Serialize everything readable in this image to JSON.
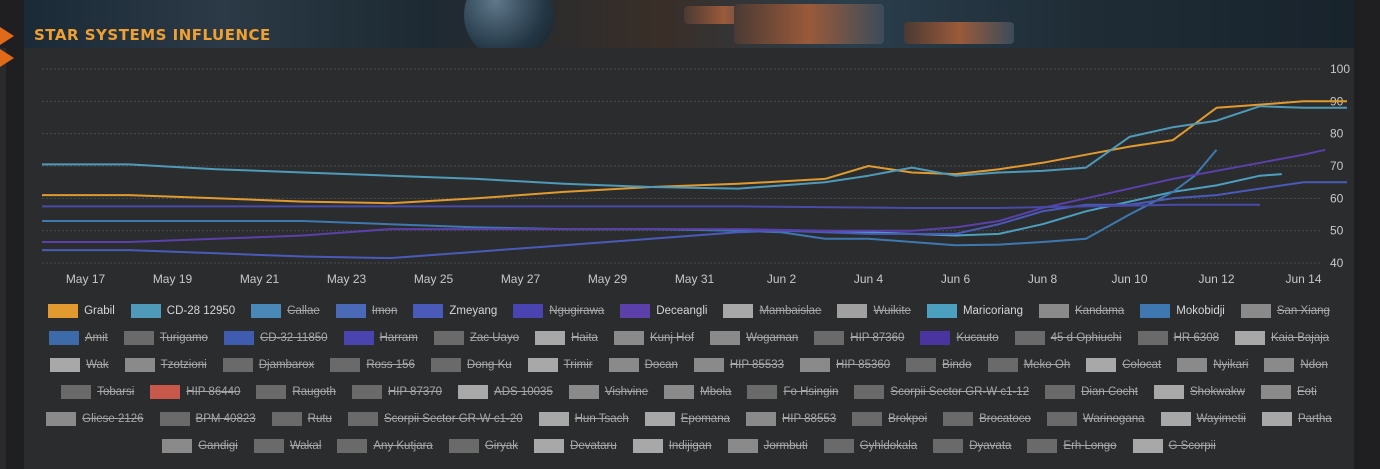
{
  "header": {
    "title": "STAR SYSTEMS INFLUENCE"
  },
  "chart_data": {
    "type": "line",
    "title": "STAR SYSTEMS INFLUENCE",
    "x_ticks": [
      "May 17",
      "May 19",
      "May 21",
      "May 23",
      "May 25",
      "May 27",
      "May 29",
      "May 31",
      "Jun 2",
      "Jun 4",
      "Jun 6",
      "Jun 8",
      "Jun 10",
      "Jun 12",
      "Jun 14"
    ],
    "y_ticks": [
      40,
      50,
      60,
      70,
      80,
      90,
      100
    ],
    "ylim": [
      40,
      100
    ],
    "grid": true,
    "legend_position": "bottom",
    "series": [
      {
        "name": "Grabil",
        "color": "#e09a30",
        "points": [
          [
            0,
            61
          ],
          [
            2,
            61
          ],
          [
            4,
            60
          ],
          [
            6,
            59
          ],
          [
            8,
            58.5
          ],
          [
            10,
            60
          ],
          [
            12,
            62
          ],
          [
            14,
            63.5
          ],
          [
            16,
            64.5
          ],
          [
            18,
            66
          ],
          [
            19,
            70
          ],
          [
            20,
            68
          ],
          [
            21,
            67.5
          ],
          [
            22,
            69
          ],
          [
            23,
            71
          ],
          [
            24,
            73.5
          ],
          [
            25,
            76
          ],
          [
            26,
            78
          ],
          [
            27,
            88
          ],
          [
            28,
            89
          ],
          [
            29,
            90
          ],
          [
            29.5,
            90
          ],
          [
            30,
            90
          ]
        ]
      },
      {
        "name": "CD-28 12950",
        "color": "#4f9ab8",
        "points": [
          [
            0,
            70.5
          ],
          [
            2,
            70.5
          ],
          [
            4,
            69
          ],
          [
            6,
            68
          ],
          [
            8,
            67
          ],
          [
            10,
            66
          ],
          [
            12,
            64.5
          ],
          [
            14,
            63.5
          ],
          [
            16,
            63
          ],
          [
            18,
            65
          ],
          [
            19,
            67
          ],
          [
            20,
            69.5
          ],
          [
            21,
            67
          ],
          [
            22,
            68
          ],
          [
            23,
            68.5
          ],
          [
            24,
            69.5
          ],
          [
            25,
            79
          ],
          [
            26,
            82
          ],
          [
            27,
            84
          ],
          [
            28,
            88.5
          ],
          [
            29,
            88
          ],
          [
            30,
            88
          ]
        ]
      },
      {
        "name": "Maricoriang",
        "color": "#4d9fc0",
        "points": [
          [
            18,
            50
          ],
          [
            19,
            49.5
          ],
          [
            20,
            49
          ],
          [
            21,
            48.5
          ],
          [
            22,
            49
          ],
          [
            23,
            52
          ],
          [
            24,
            56
          ],
          [
            25,
            59
          ],
          [
            26,
            62
          ],
          [
            27,
            64
          ],
          [
            28,
            67
          ],
          [
            28.5,
            67.5
          ]
        ]
      },
      {
        "name": "Mokobidji",
        "color": "#3f78b0",
        "points": [
          [
            0,
            53
          ],
          [
            2,
            53
          ],
          [
            4,
            53
          ],
          [
            6,
            53
          ],
          [
            8,
            52
          ],
          [
            10,
            51
          ],
          [
            12,
            50.5
          ],
          [
            14,
            50.5
          ],
          [
            16,
            50
          ],
          [
            17,
            49.5
          ],
          [
            18,
            47.5
          ],
          [
            19,
            47.5
          ],
          [
            20,
            46.5
          ],
          [
            21,
            45.5
          ],
          [
            22,
            45.7
          ],
          [
            23,
            46.5
          ],
          [
            24,
            47.5
          ],
          [
            25,
            55
          ],
          [
            26,
            62
          ],
          [
            26.5,
            67
          ],
          [
            27,
            75
          ]
        ]
      },
      {
        "name": "Zmeyang",
        "color": "#4a5ab8",
        "points": [
          [
            0,
            44
          ],
          [
            2,
            44
          ],
          [
            4,
            43
          ],
          [
            6,
            42
          ],
          [
            8,
            41.5
          ],
          [
            10,
            43.5
          ],
          [
            12,
            45.5
          ],
          [
            14,
            47.5
          ],
          [
            16,
            49.5
          ],
          [
            17,
            50
          ],
          [
            18,
            49.5
          ],
          [
            19,
            49
          ],
          [
            20,
            49
          ],
          [
            21,
            49
          ],
          [
            22,
            52
          ],
          [
            23,
            56
          ],
          [
            24,
            58
          ],
          [
            25,
            58
          ],
          [
            26,
            60
          ],
          [
            27,
            61
          ],
          [
            28,
            63
          ],
          [
            29,
            65
          ],
          [
            29.5,
            65
          ],
          [
            30,
            65
          ]
        ]
      },
      {
        "name": "Deceangli",
        "color": "#5a40a8",
        "points": [
          [
            0,
            46.5
          ],
          [
            2,
            46.5
          ],
          [
            4,
            47.5
          ],
          [
            6,
            48.5
          ],
          [
            8,
            50.5
          ],
          [
            10,
            50.5
          ],
          [
            12,
            50.5
          ],
          [
            14,
            50.5
          ],
          [
            16,
            50.5
          ],
          [
            18,
            50
          ],
          [
            20,
            50
          ],
          [
            21,
            51
          ],
          [
            22,
            53
          ],
          [
            23,
            57
          ],
          [
            24,
            60
          ],
          [
            25,
            63
          ],
          [
            26,
            66
          ],
          [
            27,
            68.5
          ],
          [
            28,
            71
          ],
          [
            29,
            73.5
          ],
          [
            29.5,
            75
          ]
        ]
      },
      {
        "name": "Amit",
        "color": "#4a4aa8",
        "points": [
          [
            0,
            57.5
          ],
          [
            4,
            57.5
          ],
          [
            8,
            57.5
          ],
          [
            12,
            57.5
          ],
          [
            16,
            57.5
          ],
          [
            20,
            57
          ],
          [
            22,
            57
          ],
          [
            24,
            57.5
          ],
          [
            26,
            58
          ],
          [
            28,
            58
          ]
        ]
      }
    ],
    "legend": [
      {
        "label": "Grabil",
        "color": "#e09a30",
        "visible": true
      },
      {
        "label": "CD-28 12950",
        "color": "#4f9ab8",
        "visible": true
      },
      {
        "label": "Callae",
        "color": "#4a88b8",
        "visible": false
      },
      {
        "label": "Imon",
        "color": "#4a6ab8",
        "visible": false
      },
      {
        "label": "Zmeyang",
        "color": "#4a5ab8",
        "visible": true
      },
      {
        "label": "Ngugirawa",
        "color": "#4a44b0",
        "visible": false
      },
      {
        "label": "Deceangli",
        "color": "#5a40a8",
        "visible": true
      },
      {
        "label": "Mambaislae",
        "color": "#a8a8a8",
        "visible": false
      },
      {
        "label": "Wuikite",
        "color": "#a0a0a0",
        "visible": false
      },
      {
        "label": "Maricoriang",
        "color": "#4d9fc0",
        "visible": true
      },
      {
        "label": "Kandama",
        "color": "#8a8a8a",
        "visible": false
      },
      {
        "label": "Mokobidji",
        "color": "#3f78b0",
        "visible": true
      },
      {
        "label": "San Xiang",
        "color": "#8a8a8a",
        "visible": false
      },
      {
        "label": "Amit",
        "color": "#3d6aa8",
        "visible": false
      },
      {
        "label": "Turigamo",
        "color": "#6a6a6a",
        "visible": false
      },
      {
        "label": "CD-32 11850",
        "color": "#3f5cb0",
        "visible": false
      },
      {
        "label": "Harram",
        "color": "#4a44b0",
        "visible": false
      },
      {
        "label": "Zac Uayo",
        "color": "#6a6a6a",
        "visible": false
      },
      {
        "label": "Haita",
        "color": "#a8a8a8",
        "visible": false
      },
      {
        "label": "Kunj Hof",
        "color": "#8a8a8a",
        "visible": false
      },
      {
        "label": "Wogaman",
        "color": "#8a8a8a",
        "visible": false
      },
      {
        "label": "HIP 87360",
        "color": "#6a6a6a",
        "visible": false
      },
      {
        "label": "Kucauto",
        "color": "#4a34a0",
        "visible": false
      },
      {
        "label": "45 d Ophiuchi",
        "color": "#6a6a6a",
        "visible": false
      },
      {
        "label": "HR 6308",
        "color": "#6a6a6a",
        "visible": false
      },
      {
        "label": "Kaia Bajaja",
        "color": "#a8a8a8",
        "visible": false
      },
      {
        "label": "Wak",
        "color": "#a8a8a8",
        "visible": false
      },
      {
        "label": "Tzotzioni",
        "color": "#8a8a8a",
        "visible": false
      },
      {
        "label": "Djambarox",
        "color": "#6a6a6a",
        "visible": false
      },
      {
        "label": "Ross 156",
        "color": "#6a6a6a",
        "visible": false
      },
      {
        "label": "Dong Ku",
        "color": "#6a6a6a",
        "visible": false
      },
      {
        "label": "Trimir",
        "color": "#a8a8a8",
        "visible": false
      },
      {
        "label": "Docan",
        "color": "#8a8a8a",
        "visible": false
      },
      {
        "label": "HIP 85533",
        "color": "#8a8a8a",
        "visible": false
      },
      {
        "label": "HIP 85360",
        "color": "#8a8a8a",
        "visible": false
      },
      {
        "label": "Bindo",
        "color": "#6a6a6a",
        "visible": false
      },
      {
        "label": "Meko Oh",
        "color": "#6a6a6a",
        "visible": false
      },
      {
        "label": "Colocat",
        "color": "#a8a8a8",
        "visible": false
      },
      {
        "label": "Nyikari",
        "color": "#8a8a8a",
        "visible": false
      },
      {
        "label": "Ndon",
        "color": "#8a8a8a",
        "visible": false
      },
      {
        "label": "Tobarsi",
        "color": "#6a6a6a",
        "visible": false
      },
      {
        "label": "HIP 86440",
        "color": "#c8584a",
        "visible": false
      },
      {
        "label": "Raugoth",
        "color": "#6a6a6a",
        "visible": false
      },
      {
        "label": "HIP 87370",
        "color": "#6a6a6a",
        "visible": false
      },
      {
        "label": "ADS 10035",
        "color": "#a8a8a8",
        "visible": false
      },
      {
        "label": "Vishvine",
        "color": "#8a8a8a",
        "visible": false
      },
      {
        "label": "Mbola",
        "color": "#8a8a8a",
        "visible": false
      },
      {
        "label": "Fo Hsingin",
        "color": "#6a6a6a",
        "visible": false
      },
      {
        "label": "Scorpii Sector GR-W c1-12",
        "color": "#6a6a6a",
        "visible": false
      },
      {
        "label": "Dian Cocht",
        "color": "#6a6a6a",
        "visible": false
      },
      {
        "label": "Shokwakw",
        "color": "#a8a8a8",
        "visible": false
      },
      {
        "label": "Eoti",
        "color": "#8a8a8a",
        "visible": false
      },
      {
        "label": "Gliese 2126",
        "color": "#8a8a8a",
        "visible": false
      },
      {
        "label": "BPM 40823",
        "color": "#6a6a6a",
        "visible": false
      },
      {
        "label": "Rutu",
        "color": "#6a6a6a",
        "visible": false
      },
      {
        "label": "Scorpii Sector GR-W c1-20",
        "color": "#6a6a6a",
        "visible": false
      },
      {
        "label": "Hun Tsach",
        "color": "#a8a8a8",
        "visible": false
      },
      {
        "label": "Epomana",
        "color": "#a8a8a8",
        "visible": false
      },
      {
        "label": "HIP 88553",
        "color": "#8a8a8a",
        "visible": false
      },
      {
        "label": "Brokpoi",
        "color": "#6a6a6a",
        "visible": false
      },
      {
        "label": "Brocatoco",
        "color": "#6a6a6a",
        "visible": false
      },
      {
        "label": "Warinogana",
        "color": "#6a6a6a",
        "visible": false
      },
      {
        "label": "Wayimetii",
        "color": "#a8a8a8",
        "visible": false
      },
      {
        "label": "Partha",
        "color": "#a8a8a8",
        "visible": false
      },
      {
        "label": "Gandigi",
        "color": "#8a8a8a",
        "visible": false
      },
      {
        "label": "Wakal",
        "color": "#6a6a6a",
        "visible": false
      },
      {
        "label": "Any Kutjara",
        "color": "#6a6a6a",
        "visible": false
      },
      {
        "label": "Giryak",
        "color": "#6a6a6a",
        "visible": false
      },
      {
        "label": "Devataru",
        "color": "#a8a8a8",
        "visible": false
      },
      {
        "label": "Indijigan",
        "color": "#a8a8a8",
        "visible": false
      },
      {
        "label": "Jormbuti",
        "color": "#8a8a8a",
        "visible": false
      },
      {
        "label": "Gyhldokala",
        "color": "#6a6a6a",
        "visible": false
      },
      {
        "label": "Dyavata",
        "color": "#6a6a6a",
        "visible": false
      },
      {
        "label": "Erh Longo",
        "color": "#6a6a6a",
        "visible": false
      },
      {
        "label": "G Scorpii",
        "color": "#a8a8a8",
        "visible": false
      }
    ]
  }
}
